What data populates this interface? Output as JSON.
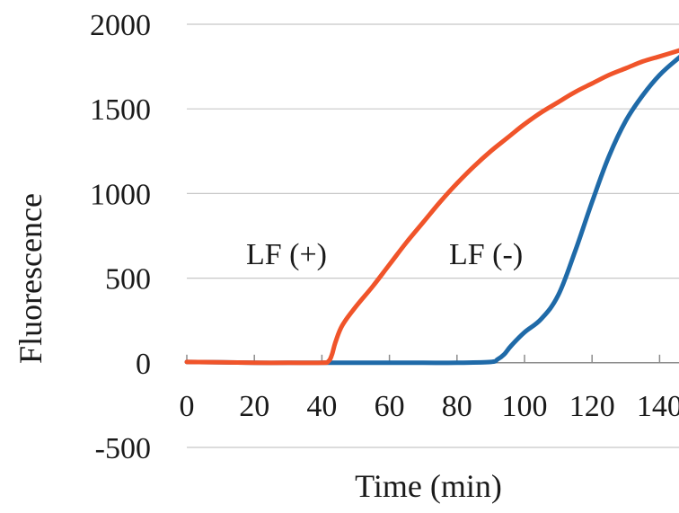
{
  "chart_data": {
    "type": "line",
    "title": "",
    "xlabel": "Time (min)",
    "ylabel": "Fluorescence",
    "xlim": [
      0,
      150
    ],
    "ylim": [
      -500,
      2000
    ],
    "x_ticks": [
      0,
      20,
      40,
      60,
      80,
      100,
      120,
      140
    ],
    "y_ticks": [
      2000,
      1500,
      1000,
      500,
      0,
      -500
    ],
    "grid": true,
    "colors": {
      "lf_plus": "#f0542a",
      "lf_minus": "#1f6aa8",
      "grid": "#c8c8c8",
      "axis": "#8c8c8c"
    },
    "series": [
      {
        "name": "LF (+)",
        "color": "#f0542a",
        "x": [
          0,
          10,
          20,
          30,
          40,
          42,
          43,
          44,
          46,
          50,
          55,
          60,
          65,
          70,
          75,
          80,
          85,
          90,
          95,
          100,
          105,
          110,
          115,
          120,
          125,
          130,
          135,
          140,
          145,
          150
        ],
        "y": [
          5,
          3,
          0,
          0,
          0,
          10,
          50,
          120,
          220,
          330,
          450,
          580,
          710,
          830,
          950,
          1060,
          1160,
          1250,
          1330,
          1410,
          1480,
          1540,
          1600,
          1650,
          1700,
          1740,
          1780,
          1810,
          1840,
          1870
        ]
      },
      {
        "name": "LF (-)",
        "color": "#1f6aa8",
        "x": [
          0,
          10,
          20,
          30,
          40,
          50,
          60,
          70,
          80,
          90,
          92,
          94,
          96,
          100,
          105,
          110,
          115,
          120,
          125,
          130,
          135,
          140,
          145,
          150
        ],
        "y": [
          5,
          3,
          0,
          0,
          0,
          0,
          0,
          0,
          0,
          5,
          20,
          50,
          100,
          180,
          260,
          400,
          660,
          950,
          1220,
          1430,
          1580,
          1700,
          1790,
          1870
        ]
      }
    ]
  }
}
